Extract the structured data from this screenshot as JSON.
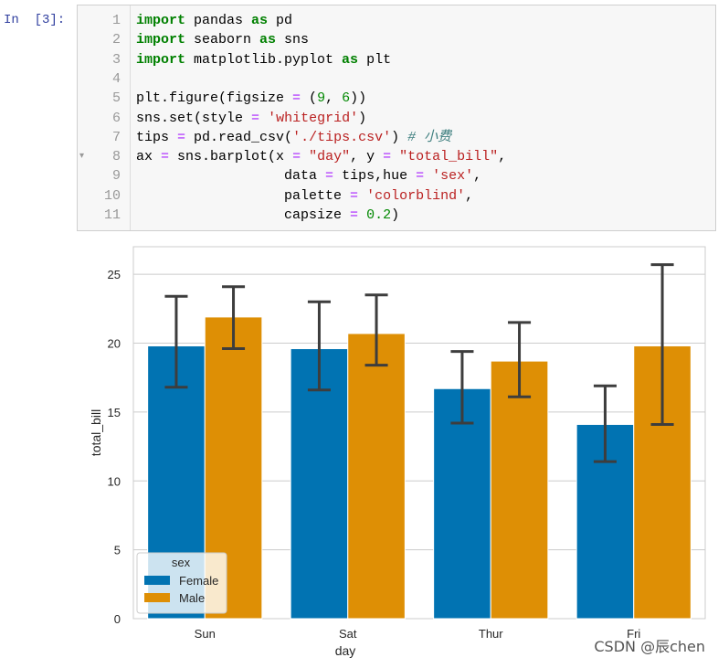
{
  "cell": {
    "prompt": "In  [3]:",
    "lines": [
      {
        "n": "1",
        "parts": [
          [
            "kw",
            "import"
          ],
          [
            "",
            " pandas "
          ],
          [
            "kw",
            "as"
          ],
          [
            "",
            " pd"
          ]
        ]
      },
      {
        "n": "2",
        "parts": [
          [
            "kw",
            "import"
          ],
          [
            "",
            " seaborn "
          ],
          [
            "kw",
            "as"
          ],
          [
            "",
            " sns"
          ]
        ]
      },
      {
        "n": "3",
        "parts": [
          [
            "kw",
            "import"
          ],
          [
            "",
            " matplotlib.pyplot "
          ],
          [
            "kw",
            "as"
          ],
          [
            "",
            " plt"
          ]
        ]
      },
      {
        "n": "4",
        "parts": []
      },
      {
        "n": "5",
        "parts": [
          [
            "",
            "plt.figure(figsize "
          ],
          [
            "op",
            "="
          ],
          [
            "",
            " ("
          ],
          [
            "num",
            "9"
          ],
          [
            "",
            ", "
          ],
          [
            "num",
            "6"
          ],
          [
            "",
            "))"
          ]
        ]
      },
      {
        "n": "6",
        "parts": [
          [
            "",
            "sns.set(style "
          ],
          [
            "op",
            "="
          ],
          [
            "",
            " "
          ],
          [
            "str",
            "'whitegrid'"
          ],
          [
            "",
            ")"
          ]
        ]
      },
      {
        "n": "7",
        "parts": [
          [
            "",
            "tips "
          ],
          [
            "op",
            "="
          ],
          [
            "",
            " pd.read_csv("
          ],
          [
            "str",
            "'./tips.csv'"
          ],
          [
            "",
            ") "
          ],
          [
            "cm",
            "# 小费"
          ]
        ]
      },
      {
        "n": "8",
        "fold": true,
        "parts": [
          [
            "",
            "ax "
          ],
          [
            "op",
            "="
          ],
          [
            "",
            " sns.barplot(x "
          ],
          [
            "op",
            "="
          ],
          [
            "",
            " "
          ],
          [
            "str",
            "\"day\""
          ],
          [
            "",
            ", y "
          ],
          [
            "op",
            "="
          ],
          [
            "",
            " "
          ],
          [
            "str",
            "\"total_bill\""
          ],
          [
            "",
            ","
          ]
        ]
      },
      {
        "n": "9",
        "parts": [
          [
            "",
            "                  data "
          ],
          [
            "op",
            "="
          ],
          [
            "",
            " tips,hue "
          ],
          [
            "op",
            "="
          ],
          [
            "",
            " "
          ],
          [
            "str",
            "'sex'"
          ],
          [
            "",
            ","
          ]
        ]
      },
      {
        "n": "10",
        "parts": [
          [
            "",
            "                  palette "
          ],
          [
            "op",
            "="
          ],
          [
            "",
            " "
          ],
          [
            "str",
            "'colorblind'"
          ],
          [
            "",
            ","
          ]
        ]
      },
      {
        "n": "11",
        "parts": [
          [
            "",
            "                  capsize "
          ],
          [
            "op",
            "="
          ],
          [
            "",
            " "
          ],
          [
            "num",
            "0.2"
          ],
          [
            "",
            ")"
          ]
        ]
      }
    ]
  },
  "chart_data": {
    "type": "bar",
    "categories": [
      "Sun",
      "Sat",
      "Thur",
      "Fri"
    ],
    "series": [
      {
        "name": "Female",
        "color": "#0173b2",
        "values": [
          19.8,
          19.6,
          16.7,
          14.1
        ],
        "ci_low": [
          16.8,
          16.6,
          14.2,
          11.4
        ],
        "ci_high": [
          23.4,
          23.0,
          19.4,
          16.9
        ]
      },
      {
        "name": "Male",
        "color": "#de8f05",
        "values": [
          21.9,
          20.7,
          18.7,
          19.8
        ],
        "ci_low": [
          19.6,
          18.4,
          16.1,
          14.1
        ],
        "ci_high": [
          24.1,
          23.5,
          21.5,
          25.7
        ]
      }
    ],
    "xlabel": "day",
    "ylabel": "total_bill",
    "yticks": [
      0,
      5,
      10,
      15,
      20,
      25
    ],
    "ylim": [
      0,
      27
    ],
    "grid": true,
    "legend": {
      "title": "sex",
      "position": "lower-left"
    }
  },
  "watermark": "CSDN @辰chen"
}
